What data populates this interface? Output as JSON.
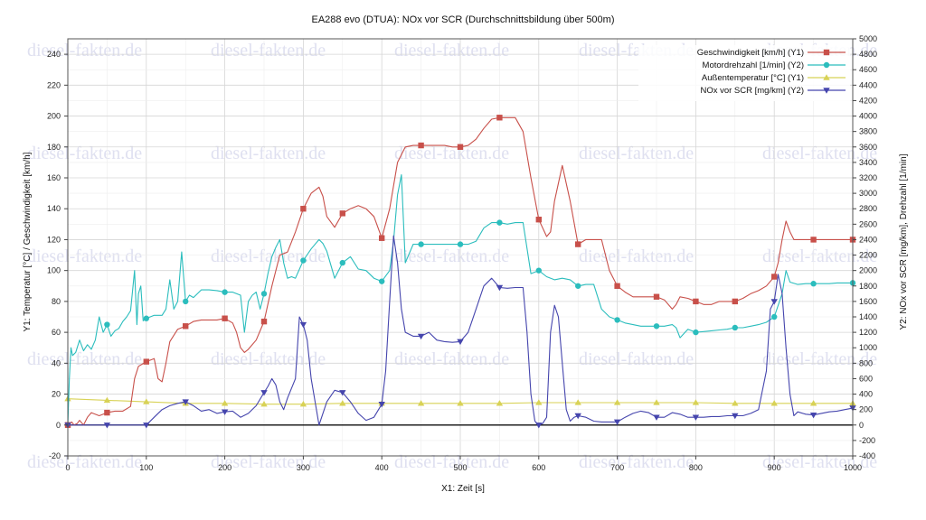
{
  "chart_data": {
    "type": "line",
    "title": "EA288 evo (DTUA): NOx vor SCR (Durchschnittsbildung über 500m)",
    "xlabel": "X1: Zeit [s]",
    "ylabel_left": "Y1: Temperatur [°C] / Geschwindigkeit [km/h]",
    "ylabel_right": "Y2: NOx vor SCR [mg/km], Drehzahl [1/min]",
    "xlim": [
      0,
      1000
    ],
    "ylim_left": [
      -20,
      250
    ],
    "ylim_right": [
      -400,
      5000
    ],
    "x_ticks": [
      "0",
      "100",
      "200",
      "300",
      "400",
      "500",
      "600",
      "700",
      "800",
      "900",
      "1000"
    ],
    "y_left_ticks": [
      "-20",
      "0",
      "20",
      "40",
      "60",
      "80",
      "100",
      "120",
      "140",
      "160",
      "180",
      "200",
      "220",
      "240"
    ],
    "y_right_ticks": [
      "-400",
      "-200",
      "0",
      "200",
      "400",
      "600",
      "800",
      "1000",
      "1200",
      "1400",
      "1600",
      "1800",
      "2000",
      "2200",
      "2400",
      "2600",
      "2800",
      "3000",
      "3200",
      "3400",
      "3600",
      "3800",
      "4000",
      "4200",
      "4400",
      "4600",
      "4800",
      "5000"
    ],
    "grid": true,
    "legend_position": "top-right",
    "watermark": "diesel-fakten.de",
    "series": [
      {
        "name": "Geschwindigkeit [km/h] (Y1)",
        "axis": "left",
        "color": "#c8504a",
        "marker": "square",
        "x": [
          0,
          5,
          8,
          12,
          15,
          20,
          25,
          30,
          40,
          50,
          60,
          70,
          80,
          85,
          90,
          100,
          110,
          115,
          120,
          125,
          130,
          140,
          150,
          160,
          170,
          180,
          190,
          200,
          210,
          215,
          220,
          225,
          230,
          240,
          250,
          260,
          270,
          280,
          290,
          300,
          310,
          320,
          325,
          330,
          340,
          350,
          360,
          370,
          380,
          390,
          400,
          410,
          420,
          430,
          440,
          450,
          460,
          470,
          480,
          490,
          500,
          510,
          520,
          530,
          540,
          550,
          560,
          570,
          580,
          590,
          600,
          610,
          615,
          620,
          630,
          640,
          650,
          660,
          670,
          680,
          690,
          700,
          710,
          720,
          730,
          740,
          750,
          760,
          770,
          775,
          780,
          790,
          800,
          810,
          820,
          830,
          840,
          850,
          860,
          870,
          880,
          890,
          900,
          905,
          910,
          915,
          920,
          925,
          930,
          940,
          950,
          960,
          970,
          980,
          990,
          1000
        ],
        "y": [
          0,
          2,
          0,
          1,
          3,
          0,
          5,
          8,
          6,
          8,
          9,
          9,
          12,
          30,
          38,
          41,
          43,
          30,
          28,
          40,
          54,
          62,
          64,
          67,
          68,
          68,
          68,
          69,
          66,
          60,
          50,
          47,
          49,
          55,
          67,
          90,
          110,
          112,
          125,
          140,
          150,
          154,
          148,
          135,
          128,
          137,
          140,
          142,
          140,
          135,
          121,
          140,
          170,
          180,
          181,
          181,
          181,
          181,
          181,
          180,
          180,
          181,
          185,
          192,
          198,
          199,
          199,
          199,
          190,
          160,
          133,
          122,
          125,
          145,
          168,
          145,
          117,
          120,
          120,
          120,
          100,
          90,
          86,
          83,
          83,
          83,
          83,
          81,
          75,
          78,
          83,
          82,
          80,
          78,
          78,
          80,
          80,
          80,
          82,
          85,
          87,
          90,
          96,
          105,
          120,
          132,
          125,
          120,
          120,
          120,
          120,
          120,
          120,
          120,
          120,
          120
        ]
      },
      {
        "name": "Motordrehzahl [1/min] (Y2)",
        "axis": "right",
        "color": "#2bbdbd",
        "marker": "circle",
        "x": [
          0,
          2,
          4,
          6,
          10,
          15,
          20,
          25,
          30,
          35,
          40,
          45,
          50,
          55,
          60,
          65,
          70,
          75,
          80,
          85,
          88,
          90,
          93,
          96,
          100,
          110,
          120,
          125,
          130,
          135,
          140,
          145,
          150,
          155,
          160,
          170,
          180,
          190,
          200,
          210,
          220,
          225,
          230,
          235,
          240,
          245,
          250,
          255,
          260,
          265,
          270,
          275,
          280,
          285,
          290,
          300,
          310,
          320,
          325,
          330,
          340,
          350,
          360,
          370,
          380,
          390,
          400,
          410,
          415,
          420,
          425,
          430,
          440,
          450,
          460,
          470,
          480,
          490,
          500,
          510,
          520,
          530,
          540,
          550,
          560,
          570,
          580,
          590,
          600,
          610,
          620,
          630,
          640,
          650,
          660,
          670,
          680,
          690,
          700,
          710,
          720,
          730,
          740,
          750,
          760,
          770,
          775,
          780,
          790,
          800,
          810,
          820,
          830,
          840,
          850,
          860,
          870,
          880,
          890,
          900,
          910,
          915,
          920,
          930,
          940,
          950,
          960,
          970,
          980,
          990,
          1000
        ],
        "y": [
          0,
          600,
          1000,
          900,
          940,
          1100,
          960,
          1040,
          980,
          1100,
          1400,
          1200,
          1300,
          1150,
          1220,
          1250,
          1340,
          1400,
          1480,
          2000,
          1300,
          1700,
          1800,
          1350,
          1380,
          1420,
          1420,
          1500,
          1880,
          1500,
          1600,
          2240,
          1600,
          1680,
          1650,
          1750,
          1750,
          1740,
          1720,
          1720,
          1680,
          1200,
          1600,
          1680,
          1720,
          1500,
          1700,
          1960,
          2180,
          2300,
          2400,
          2100,
          1900,
          1920,
          1900,
          2130,
          2280,
          2400,
          2350,
          2250,
          1900,
          2100,
          2180,
          2020,
          2000,
          1900,
          1860,
          2000,
          2380,
          2980,
          3240,
          2100,
          2340,
          2340,
          2340,
          2340,
          2340,
          2340,
          2340,
          2340,
          2380,
          2550,
          2620,
          2620,
          2600,
          2620,
          2620,
          1960,
          2000,
          1920,
          1880,
          1900,
          1880,
          1800,
          1820,
          1820,
          1500,
          1400,
          1360,
          1320,
          1300,
          1280,
          1280,
          1280,
          1280,
          1300,
          1260,
          1130,
          1240,
          1200,
          1210,
          1220,
          1230,
          1240,
          1260,
          1260,
          1280,
          1300,
          1330,
          1400,
          1700,
          2000,
          1850,
          1820,
          1830,
          1830,
          1830,
          1830,
          1840,
          1840,
          1840
        ]
      },
      {
        "name": "Außentemperatur [°C] (Y1)",
        "axis": "left",
        "color": "#d8d256",
        "marker": "triangle-up",
        "x": [
          0,
          50,
          100,
          150,
          200,
          250,
          300,
          350,
          400,
          450,
          500,
          550,
          600,
          650,
          700,
          750,
          800,
          850,
          900,
          950,
          1000
        ],
        "y": [
          17,
          16,
          15,
          14,
          14,
          13.5,
          13.5,
          14,
          14,
          14,
          14,
          14,
          14.5,
          14.5,
          14.5,
          14.5,
          14.5,
          14,
          14,
          14,
          14
        ]
      },
      {
        "name": "NOx vor SCR [mg/km] (Y2)",
        "axis": "right",
        "color": "#4545ad",
        "marker": "triangle-down",
        "x": [
          0,
          50,
          100,
          110,
          120,
          130,
          140,
          150,
          160,
          170,
          180,
          190,
          200,
          210,
          220,
          230,
          240,
          250,
          255,
          260,
          265,
          270,
          275,
          280,
          290,
          295,
          300,
          305,
          310,
          320,
          330,
          340,
          350,
          360,
          370,
          380,
          390,
          400,
          405,
          410,
          415,
          420,
          425,
          430,
          440,
          450,
          460,
          470,
          480,
          490,
          500,
          510,
          520,
          530,
          540,
          550,
          560,
          570,
          580,
          585,
          590,
          595,
          600,
          605,
          610,
          615,
          620,
          625,
          630,
          635,
          640,
          645,
          650,
          660,
          670,
          680,
          690,
          700,
          710,
          720,
          730,
          740,
          750,
          760,
          770,
          780,
          790,
          800,
          810,
          820,
          830,
          840,
          850,
          860,
          870,
          880,
          890,
          895,
          900,
          905,
          910,
          915,
          920,
          925,
          930,
          940,
          950,
          960,
          970,
          980,
          990,
          1000
        ],
        "y": [
          0,
          0,
          0,
          100,
          200,
          250,
          280,
          300,
          250,
          180,
          200,
          150,
          170,
          180,
          100,
          150,
          250,
          420,
          500,
          600,
          520,
          300,
          200,
          350,
          600,
          1400,
          1300,
          1100,
          600,
          0,
          300,
          450,
          420,
          300,
          150,
          60,
          100,
          270,
          700,
          1600,
          2450,
          2100,
          1500,
          1200,
          1150,
          1150,
          1200,
          1100,
          1080,
          1070,
          1080,
          1200,
          1500,
          1800,
          1900,
          1780,
          1770,
          1780,
          1780,
          1200,
          400,
          50,
          0,
          20,
          100,
          1200,
          1550,
          1400,
          800,
          200,
          50,
          100,
          120,
          100,
          50,
          40,
          40,
          40,
          100,
          150,
          180,
          160,
          100,
          100,
          160,
          140,
          100,
          100,
          100,
          110,
          110,
          120,
          120,
          120,
          150,
          200,
          700,
          1500,
          1600,
          1950,
          1700,
          1000,
          400,
          120,
          170,
          140,
          130,
          150,
          170,
          180,
          200,
          220
        ]
      }
    ]
  }
}
